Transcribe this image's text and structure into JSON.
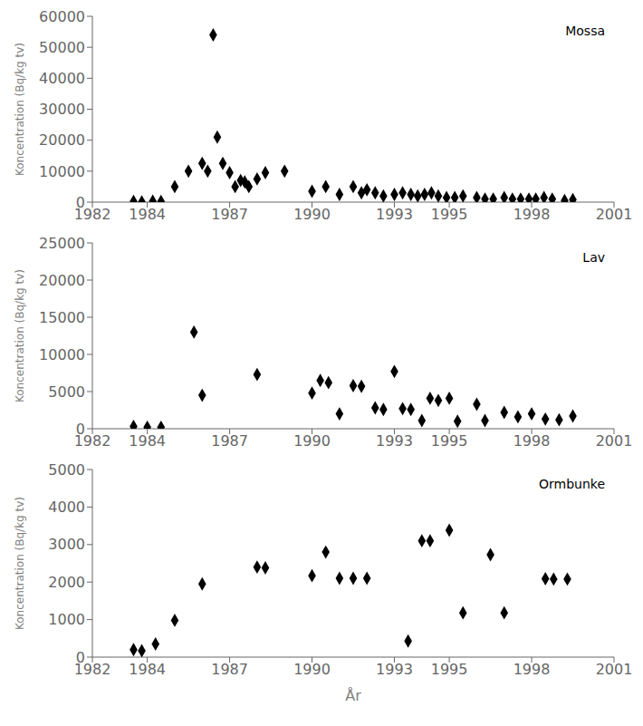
{
  "chart_data": [
    {
      "type": "scatter",
      "annotation": "Mossa",
      "ylabel": "Koncentration (Bq/kg tv)",
      "x": [
        1983.5,
        1983.8,
        1984.2,
        1984.5,
        1985.0,
        1985.5,
        1986.0,
        1986.2,
        1986.4,
        1986.55,
        1986.75,
        1987.0,
        1987.2,
        1987.4,
        1987.55,
        1987.7,
        1988.0,
        1988.3,
        1989.0,
        1990.0,
        1990.5,
        1991.0,
        1991.5,
        1991.8,
        1992.0,
        1992.3,
        1992.6,
        1993.0,
        1993.3,
        1993.6,
        1993.85,
        1994.1,
        1994.35,
        1994.6,
        1994.9,
        1995.2,
        1995.5,
        1996.0,
        1996.3,
        1996.6,
        1997.0,
        1997.3,
        1997.6,
        1997.9,
        1998.15,
        1998.45,
        1998.75,
        1999.2,
        1999.5
      ],
      "values": [
        200,
        100,
        300,
        200,
        5000,
        10000,
        12500,
        10000,
        54000,
        21000,
        12500,
        9500,
        5000,
        7000,
        6500,
        5000,
        7500,
        9500,
        10000,
        3500,
        5000,
        2500,
        5000,
        3000,
        4000,
        3000,
        2000,
        2500,
        3000,
        2500,
        2000,
        2500,
        3000,
        2000,
        1500,
        1500,
        2000,
        1500,
        1000,
        1000,
        1500,
        1000,
        1000,
        1000,
        1000,
        1500,
        1000,
        500,
        800
      ],
      "xlim": [
        1982,
        2001
      ],
      "xticks": [
        1982,
        1984,
        1987,
        1990,
        1993,
        1995,
        1998,
        2001
      ],
      "ylim": [
        0,
        60000
      ],
      "yticks": [
        0,
        10000,
        20000,
        30000,
        40000,
        50000,
        60000
      ],
      "marker": "diamond",
      "color": "black"
    },
    {
      "type": "scatter",
      "annotation": "Lav",
      "ylabel": "Koncentration (Bq/kg tv)",
      "x": [
        1983.5,
        1984.0,
        1984.5,
        1986.0,
        1985.7,
        1988.0,
        1990.0,
        1990.3,
        1990.6,
        1991.0,
        1991.5,
        1991.8,
        1992.3,
        1992.6,
        1993.0,
        1993.3,
        1993.6,
        1994.0,
        1994.3,
        1994.6,
        1995.0,
        1995.3,
        1996.0,
        1996.3,
        1997.0,
        1997.5,
        1998.0,
        1998.5,
        1999.0,
        1999.5
      ],
      "values": [
        300,
        200,
        200,
        4500,
        13000,
        7300,
        4800,
        6500,
        6200,
        2000,
        5800,
        5700,
        2800,
        2600,
        7700,
        2700,
        2600,
        1100,
        4100,
        3800,
        4100,
        1000,
        3300,
        1100,
        2200,
        1600,
        2000,
        1300,
        1200,
        1700
      ],
      "xlim": [
        1982,
        2001
      ],
      "xticks": [
        1982,
        1984,
        1987,
        1990,
        1993,
        1995,
        1998,
        2001
      ],
      "ylim": [
        0,
        25000
      ],
      "yticks": [
        0,
        5000,
        10000,
        15000,
        20000,
        25000
      ],
      "marker": "diamond",
      "color": "black"
    },
    {
      "type": "scatter",
      "annotation": "Ormbunke",
      "ylabel": "Koncentration (Bq/kg tv)",
      "xlabel": "År",
      "x": [
        1983.5,
        1983.8,
        1984.3,
        1985.0,
        1986.0,
        1988.0,
        1988.3,
        1990.0,
        1990.5,
        1991.0,
        1991.5,
        1992.0,
        1993.5,
        1994.0,
        1994.3,
        1995.0,
        1995.5,
        1996.5,
        1997.0,
        1998.5,
        1998.8,
        1999.3
      ],
      "values": [
        200,
        170,
        350,
        980,
        1950,
        2400,
        2380,
        2170,
        2800,
        2100,
        2100,
        2100,
        430,
        3100,
        3100,
        3380,
        1180,
        2730,
        1180,
        2090,
        2080,
        2080
      ],
      "xlim": [
        1982,
        2001
      ],
      "xticks": [
        1982,
        1984,
        1987,
        1990,
        1993,
        1995,
        1998,
        2001
      ],
      "ylim": [
        0,
        5000
      ],
      "yticks": [
        0,
        1000,
        2000,
        3000,
        4000,
        5000
      ],
      "marker": "diamond",
      "color": "black"
    }
  ]
}
